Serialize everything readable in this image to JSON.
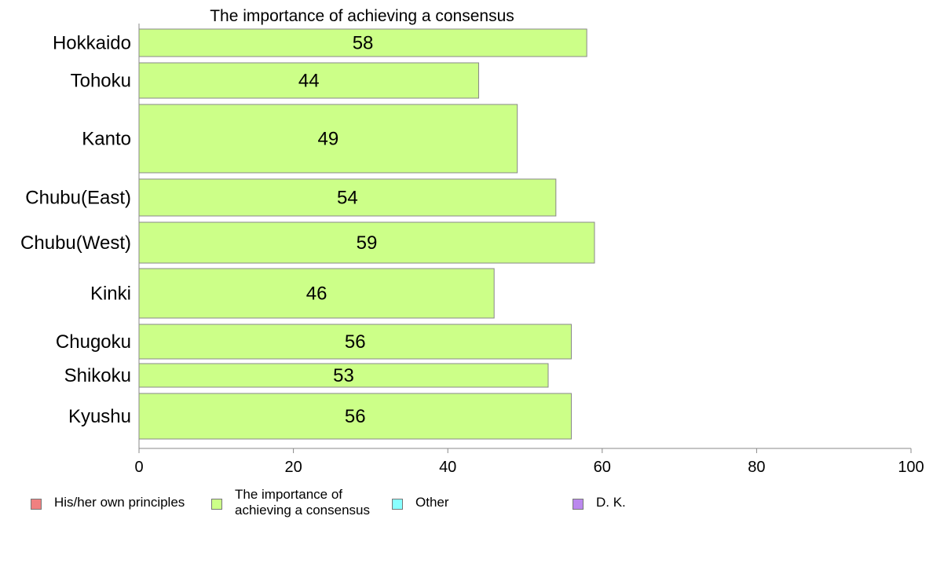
{
  "chart_data": {
    "type": "bar",
    "orientation": "horizontal",
    "title": "The importance of achieving a consensus",
    "categories": [
      "Hokkaido",
      "Tohoku",
      "Kanto",
      "Chubu(East)",
      "Chubu(West)",
      "Kinki",
      "Chugoku",
      "Shikoku",
      "Kyushu"
    ],
    "values": [
      58,
      44,
      49,
      54,
      59,
      46,
      56,
      53,
      56
    ],
    "data_labels": [
      "58",
      "44",
      "49",
      "54",
      "59",
      "46",
      "56",
      "53",
      "56"
    ],
    "xlim": [
      0,
      100
    ],
    "xticks": [
      "0",
      "20",
      "40",
      "60",
      "80",
      "100"
    ],
    "xlabel": "",
    "ylabel": "",
    "grid": false,
    "bar_color": "#ccff88",
    "legend_placement": "bottom",
    "legend": [
      {
        "label": "His/her own principles",
        "color": "#f08080"
      },
      {
        "label": "The importance of achieving a consensus",
        "color": "#ccff88"
      },
      {
        "label": "Other",
        "color": "#88ffff"
      },
      {
        "label": "D. K.",
        "color": "#bb88ee"
      }
    ]
  }
}
